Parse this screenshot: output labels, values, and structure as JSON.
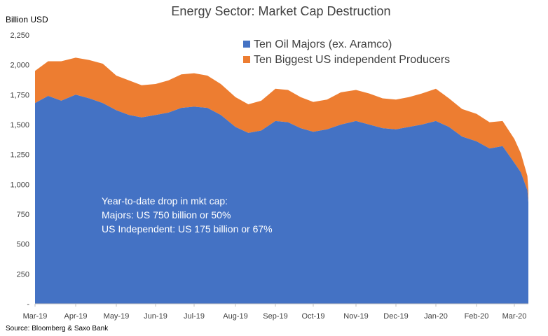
{
  "chart_data": {
    "type": "area",
    "stacked": true,
    "title": "Energy Sector: Market Cap Destruction",
    "y_unit_label": "Billion  USD",
    "ylim": [
      0,
      2250
    ],
    "y_ticks": [
      "-",
      "250",
      "500",
      "750",
      "1,000",
      "1,250",
      "1,500",
      "1,750",
      "2,000",
      "2,250"
    ],
    "y_tick_values": [
      0,
      250,
      500,
      750,
      1000,
      1250,
      1500,
      1750,
      2000,
      2250
    ],
    "x_ticks": [
      "Mar-19",
      "Apr-19",
      "May-19",
      "Jun-19",
      "Jul-19",
      "Aug-19",
      "Sep-19",
      "Oct-19",
      "Nov-19",
      "Dec-19",
      "Jan-20",
      "Feb-20",
      "Mar-20"
    ],
    "x_tick_dates": [
      "2019-03-01",
      "2019-04-01",
      "2019-05-01",
      "2019-06-01",
      "2019-07-01",
      "2019-08-01",
      "2019-09-01",
      "2019-10-01",
      "2019-11-01",
      "2019-12-01",
      "2020-01-01",
      "2020-02-01",
      "2020-03-01"
    ],
    "grid": false,
    "legend_position": "top-right",
    "x": [
      "2019-03-01",
      "2019-03-11",
      "2019-03-21",
      "2019-04-01",
      "2019-04-11",
      "2019-04-21",
      "2019-05-01",
      "2019-05-11",
      "2019-05-21",
      "2019-06-01",
      "2019-06-11",
      "2019-06-21",
      "2019-07-01",
      "2019-07-11",
      "2019-07-21",
      "2019-08-01",
      "2019-08-11",
      "2019-08-21",
      "2019-09-01",
      "2019-09-11",
      "2019-09-21",
      "2019-10-01",
      "2019-10-11",
      "2019-10-21",
      "2019-11-01",
      "2019-11-11",
      "2019-11-21",
      "2019-12-01",
      "2019-12-11",
      "2019-12-21",
      "2020-01-01",
      "2020-01-11",
      "2020-01-21",
      "2020-02-01",
      "2020-02-11",
      "2020-02-21",
      "2020-03-01",
      "2020-03-06",
      "2020-03-11",
      "2020-03-16",
      "2020-03-21"
    ],
    "series": [
      {
        "name": "Ten Oil Majors (ex. Aramco)",
        "color": "#4472C4",
        "values": [
          1680,
          1740,
          1700,
          1750,
          1720,
          1680,
          1620,
          1580,
          1560,
          1580,
          1600,
          1640,
          1650,
          1640,
          1580,
          1480,
          1430,
          1450,
          1530,
          1520,
          1470,
          1440,
          1460,
          1500,
          1530,
          1500,
          1470,
          1460,
          1480,
          1500,
          1530,
          1480,
          1400,
          1360,
          1300,
          1320,
          1180,
          1100,
          950,
          850,
          760
        ]
      },
      {
        "name": "Ten Biggest US independent Producers",
        "color": "#ED7D31",
        "values": [
          270,
          290,
          330,
          310,
          320,
          330,
          290,
          290,
          270,
          260,
          270,
          280,
          280,
          270,
          260,
          250,
          240,
          250,
          270,
          270,
          260,
          250,
          250,
          270,
          260,
          260,
          250,
          250,
          250,
          260,
          270,
          240,
          230,
          230,
          220,
          210,
          200,
          160,
          120,
          100,
          80
        ]
      }
    ],
    "annotations": [
      "Year-to-date drop in mkt cap:",
      "Majors: US 750 billion or 50%",
      "US Independent: US 175 billion or 67%"
    ],
    "source": "Source: Bloomberg & Saxo Bank"
  }
}
